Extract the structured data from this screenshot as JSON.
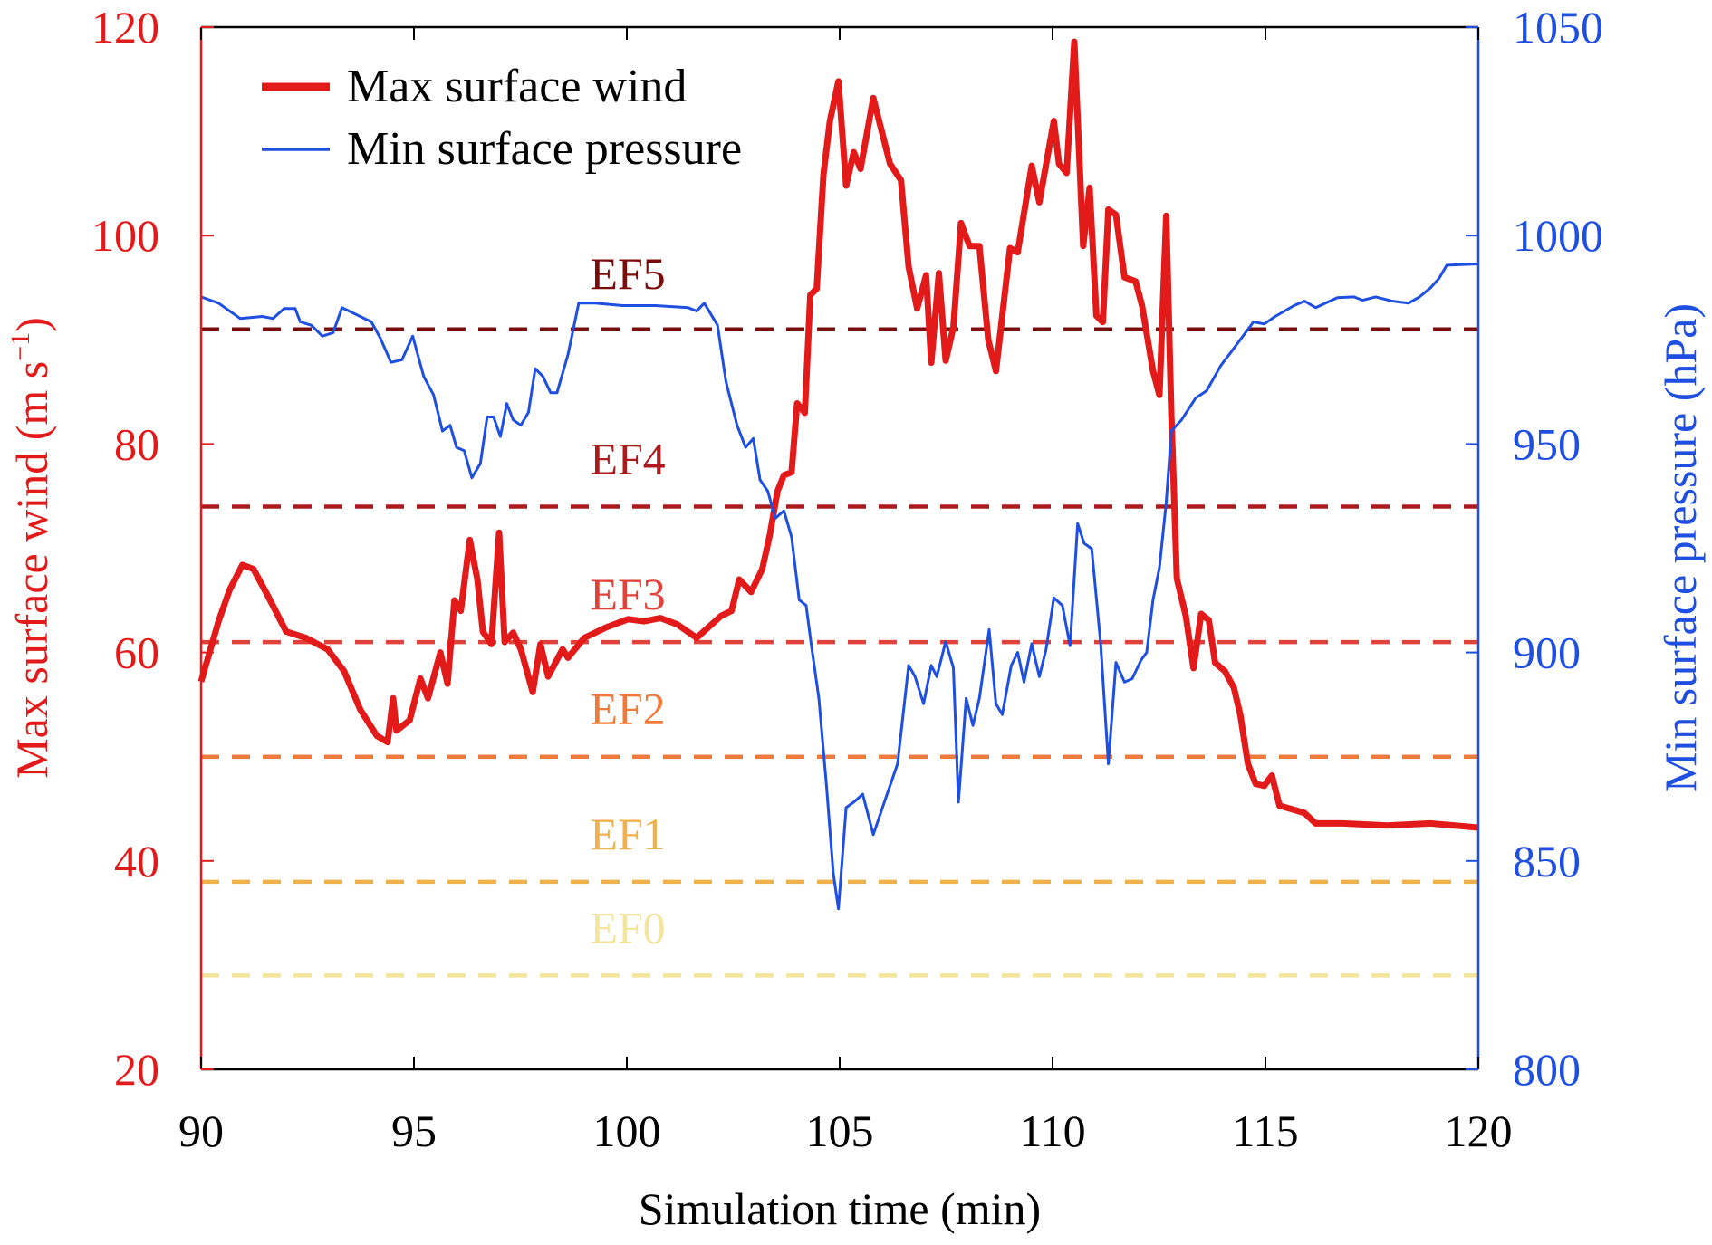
{
  "chart_data": {
    "type": "line",
    "xlabel": "Simulation time (min)",
    "ylabel_left": "Max surface wind (m s",
    "ylabel_left_sup": "−1",
    "ylabel_left_end": ")",
    "ylabel_right": "Min surface pressure (hPa)",
    "xlim": [
      90,
      120
    ],
    "ylim_left": [
      20,
      120
    ],
    "ylim_right": [
      800,
      1050
    ],
    "xticks": [
      "90",
      "95",
      "100",
      "105",
      "110",
      "115",
      "120"
    ],
    "xtick_values": [
      90,
      95,
      100,
      105,
      110,
      115,
      120
    ],
    "yticks_left": [
      "20",
      "40",
      "60",
      "80",
      "100",
      "120"
    ],
    "ytick_left_values": [
      20,
      40,
      60,
      80,
      100,
      120
    ],
    "yticks_right": [
      "800",
      "850",
      "900",
      "950",
      "1000",
      "1050"
    ],
    "ytick_right_values": [
      800,
      850,
      900,
      950,
      1000,
      1050
    ],
    "legend": [
      "Max surface wind",
      "Min surface pressure"
    ],
    "legend_position": "top-left",
    "colors": {
      "wind": "#e31a1a",
      "pressure": "#1f4fe0",
      "left_axis": "#e31a1a",
      "right_axis": "#1f4fe0"
    },
    "thresholds": [
      {
        "label": "EF5",
        "value": 91,
        "color": "#7a0c0c"
      },
      {
        "label": "EF4",
        "value": 74,
        "color": "#ad1a1e"
      },
      {
        "label": "EF3",
        "value": 61,
        "color": "#e0413a"
      },
      {
        "label": "EF2",
        "value": 50,
        "color": "#ee7b3c"
      },
      {
        "label": "EF1",
        "value": 38,
        "color": "#eeb14c"
      },
      {
        "label": "EF0",
        "value": 29,
        "color": "#f3e59c"
      }
    ],
    "series": [
      {
        "name": "Max surface wind",
        "axis": "left",
        "x": [
          90,
          90.41,
          90.67,
          90.97,
          91.23,
          91.56,
          92,
          92.46,
          92.97,
          93.36,
          93.74,
          94.13,
          94.38,
          94.51,
          94.59,
          94.9,
          95.15,
          95.33,
          95.62,
          95.79,
          95.95,
          96.1,
          96.31,
          96.49,
          96.62,
          96.82,
          97,
          97.13,
          97.33,
          97.51,
          97.79,
          97.97,
          98.15,
          98.49,
          98.62,
          99,
          99.51,
          100.03,
          100.41,
          100.79,
          101.18,
          101.64,
          102.21,
          102.46,
          102.64,
          102.92,
          103.18,
          103.36,
          103.54,
          103.69,
          103.87,
          104,
          104.18,
          104.31,
          104.46,
          104.62,
          104.77,
          104.97,
          105.15,
          105.33,
          105.49,
          105.79,
          106.18,
          106.44,
          106.62,
          106.82,
          107.03,
          107.15,
          107.33,
          107.49,
          107.67,
          107.85,
          108.05,
          108.28,
          108.49,
          108.67,
          109,
          109.18,
          109.51,
          109.69,
          110.03,
          110.15,
          110.33,
          110.51,
          110.72,
          110.87,
          111.03,
          111.18,
          111.31,
          111.49,
          111.69,
          111.95,
          112.1,
          112.36,
          112.51,
          112.67,
          112.79,
          112.92,
          113.13,
          113.31,
          113.49,
          113.67,
          113.82,
          114.05,
          114.26,
          114.41,
          114.59,
          114.77,
          114.97,
          115.15,
          115.33,
          115.67,
          115.92,
          116.18,
          116.82,
          117.85,
          118.87,
          120
        ],
        "y": [
          57.2,
          63,
          66,
          68.4,
          68,
          65.5,
          62,
          61.4,
          60.3,
          58.2,
          54.5,
          52,
          51.4,
          55.6,
          52.5,
          53.5,
          57.5,
          55.6,
          60,
          57,
          65,
          64,
          70.8,
          67,
          62,
          60.8,
          71.5,
          61,
          61.9,
          60.3,
          56.2,
          60.8,
          57.7,
          60.3,
          59.5,
          61.4,
          62.4,
          63.2,
          63,
          63.3,
          62.7,
          61.4,
          63.5,
          64,
          67,
          65.8,
          68,
          71.3,
          75.5,
          77,
          77.3,
          83.9,
          83,
          94.3,
          94.9,
          105.9,
          111,
          114.8,
          104.8,
          108,
          106.4,
          113.2,
          106.9,
          105.3,
          97,
          93,
          96.2,
          87.8,
          96.4,
          88,
          91.2,
          101.2,
          99,
          99,
          90,
          87,
          98.8,
          98.4,
          106.7,
          103.2,
          111,
          106.9,
          106,
          118.6,
          99,
          104.6,
          92.3,
          91.7,
          102.5,
          102,
          96,
          95.6,
          93.3,
          87,
          84.7,
          101.9,
          82.8,
          67.1,
          63.5,
          58.5,
          63.7,
          63.1,
          59,
          58.2,
          56.6,
          54,
          49.3,
          47.4,
          47.2,
          48.2,
          45.3,
          44.9,
          44.6,
          43.6,
          43.6,
          43.4,
          43.6,
          43.2
        ]
      },
      {
        "name": "Min surface pressure",
        "axis": "right",
        "x": [
          90,
          90.41,
          90.92,
          91.44,
          91.69,
          91.95,
          92.21,
          92.33,
          92.59,
          92.85,
          93.1,
          93.31,
          93.62,
          94,
          94.21,
          94.46,
          94.72,
          94.97,
          95.23,
          95.46,
          95.67,
          95.85,
          96,
          96.18,
          96.36,
          96.56,
          96.72,
          96.87,
          97.03,
          97.18,
          97.33,
          97.51,
          97.69,
          97.85,
          98.03,
          98.21,
          98.36,
          98.62,
          98.87,
          99.26,
          99.9,
          100.67,
          101.44,
          101.64,
          101.82,
          102.13,
          102.33,
          102.59,
          102.79,
          102.97,
          103.13,
          103.31,
          103.49,
          103.69,
          103.87,
          104.05,
          104.21,
          104.33,
          104.51,
          104.69,
          104.85,
          104.97,
          105.15,
          105.33,
          105.54,
          105.79,
          106.05,
          106.36,
          106.62,
          106.77,
          106.97,
          107.15,
          107.28,
          107.49,
          107.67,
          107.79,
          107.97,
          108.13,
          108.28,
          108.51,
          108.67,
          108.82,
          109.03,
          109.18,
          109.33,
          109.51,
          109.69,
          109.85,
          110.03,
          110.23,
          110.41,
          110.59,
          110.74,
          110.92,
          111.13,
          111.31,
          111.49,
          111.69,
          111.87,
          112.08,
          112.21,
          112.36,
          112.51,
          112.67,
          112.79,
          113.03,
          113.36,
          113.62,
          113.95,
          114.21,
          114.72,
          114.97,
          115.23,
          115.67,
          115.92,
          116.18,
          116.69,
          117.08,
          117.28,
          117.59,
          117.97,
          118.36,
          118.62,
          118.87,
          119.08,
          119.26,
          120
        ],
        "y": [
          985.3,
          983.8,
          980.1,
          980.6,
          980.1,
          982.5,
          982.5,
          979.3,
          978.5,
          975.9,
          976.7,
          982.7,
          981.2,
          979.3,
          975.4,
          969.6,
          970.2,
          975.9,
          966.2,
          961.8,
          953.1,
          954.5,
          949.2,
          948.4,
          941.9,
          945.3,
          956.5,
          956.5,
          951.8,
          959.7,
          955.8,
          954.5,
          957.6,
          968.1,
          966.2,
          962.3,
          962.3,
          971.5,
          983.8,
          983.8,
          983.2,
          983.2,
          982.7,
          981.9,
          983.8,
          978.5,
          964.9,
          954.5,
          949.2,
          951.3,
          941.4,
          938.7,
          932.2,
          934,
          927.7,
          912.6,
          911.3,
          902.1,
          889,
          868.1,
          847.1,
          838.5,
          862.8,
          864.1,
          866,
          856.3,
          864.1,
          873.3,
          896.9,
          894.2,
          887.7,
          896.9,
          894.2,
          902.6,
          896.3,
          864.1,
          889,
          882.5,
          889,
          905.5,
          887.7,
          885.1,
          896.9,
          900,
          892.9,
          902.1,
          894.2,
          900.8,
          913.1,
          911.3,
          901.6,
          930.9,
          926.2,
          924.9,
          902.1,
          873.3,
          897.6,
          892.9,
          893.7,
          898.2,
          900,
          912.6,
          920.4,
          936.1,
          953.1,
          955.8,
          961,
          962.8,
          968.8,
          972.3,
          979.3,
          978.8,
          980.6,
          983.2,
          984.3,
          982.7,
          985.1,
          985.3,
          984.5,
          985.3,
          984.3,
          983.8,
          985.3,
          987.4,
          989.8,
          992.9,
          993.2
        ]
      }
    ]
  }
}
